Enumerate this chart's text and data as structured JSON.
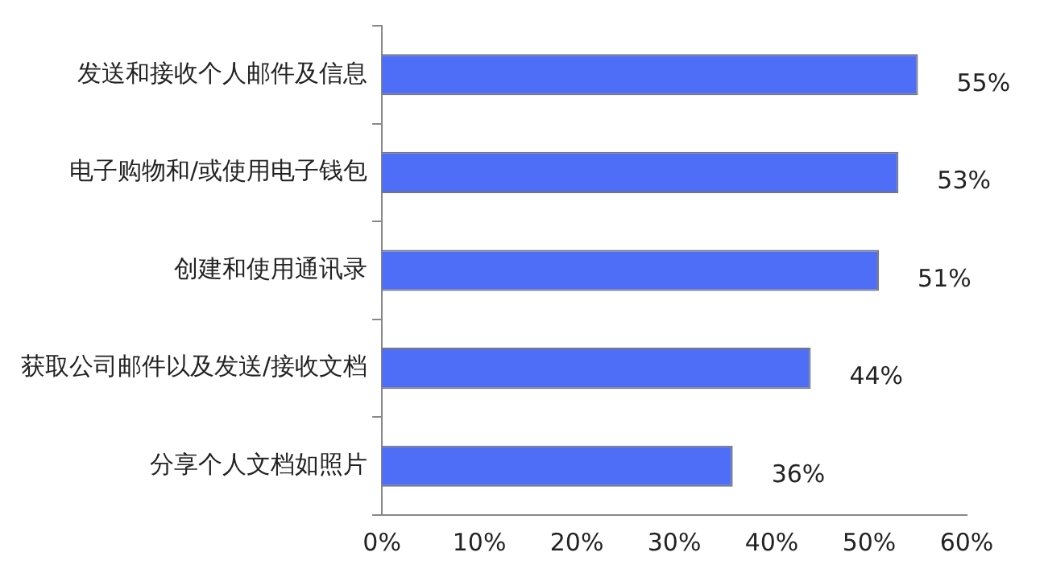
{
  "chart_data": {
    "type": "bar",
    "orientation": "horizontal",
    "categories": [
      "发送和接收个人邮件及信息",
      "电子购物和/或使用电子钱包",
      "创建和使用通讯录",
      "获取公司邮件以及发送/接收文档",
      "分享个人文档如照片"
    ],
    "values": [
      55,
      53,
      51,
      44,
      36
    ],
    "value_labels": [
      "55%",
      "53%",
      "51%",
      "44%",
      "36%"
    ],
    "color": "#4f6ef7",
    "xlim": [
      0,
      60
    ],
    "xticks": [
      {
        "value": 0,
        "label": "0%"
      },
      {
        "value": 10,
        "label": "10%"
      },
      {
        "value": 20,
        "label": "20%"
      },
      {
        "value": 30,
        "label": "30%"
      },
      {
        "value": 40,
        "label": "40%"
      },
      {
        "value": 50,
        "label": "50%"
      },
      {
        "value": 60,
        "label": "60%"
      }
    ],
    "grid": false,
    "legend": false
  }
}
